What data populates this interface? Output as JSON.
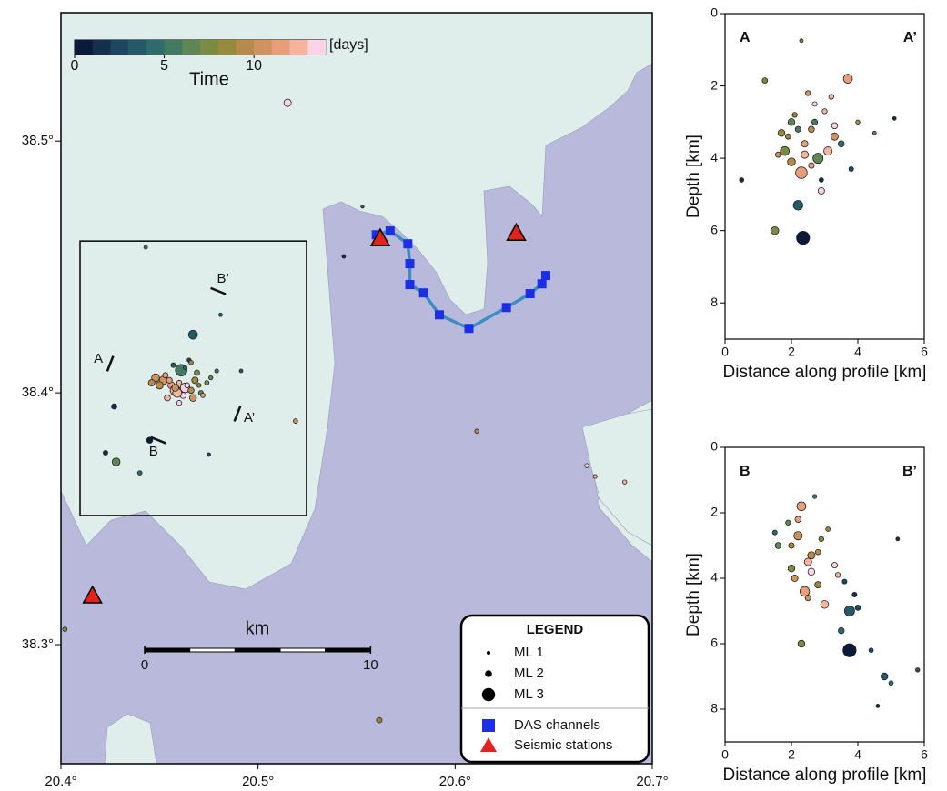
{
  "chart_data": [
    {
      "type": "map",
      "xlim": [
        20.4,
        20.7
      ],
      "ylim": [
        38.2527,
        38.551
      ],
      "xticks": [
        {
          "value": 20.4,
          "label": "20.4°"
        },
        {
          "value": 20.5,
          "label": "20.5°"
        },
        {
          "value": 20.6,
          "label": "20.6°"
        },
        {
          "value": 20.7,
          "label": "20.7°"
        }
      ],
      "yticks": [
        {
          "value": 38.3,
          "label": "38.3°"
        },
        {
          "value": 38.4,
          "label": "38.4°"
        },
        {
          "value": 38.5,
          "label": "38.5°"
        }
      ],
      "colorbar": {
        "label": "Time",
        "unit": "[days]",
        "lim": [
          0,
          14
        ],
        "ticks": [
          0,
          5,
          10
        ],
        "colors": [
          "#0b1a3b",
          "#15304f",
          "#1d4760",
          "#245a68",
          "#2f6b6a",
          "#437a62",
          "#5f8654",
          "#7b8b44",
          "#98893e",
          "#b58a4c",
          "#cf9360",
          "#e89e78",
          "#f4b49d",
          "#fbd3e6"
        ]
      },
      "events": {
        "x": [
          20.515,
          20.443,
          20.481,
          20.5435,
          20.553,
          20.519,
          20.611,
          20.402,
          20.5615,
          20.6668,
          20.671,
          20.686,
          20.427,
          20.445,
          20.428,
          20.4226,
          20.44,
          20.475,
          20.467,
          20.479,
          20.4914,
          20.452,
          20.456,
          20.46,
          20.463,
          20.466,
          20.47,
          20.448,
          20.453,
          20.458,
          20.462,
          20.467,
          20.471,
          20.474,
          20.45,
          20.455,
          20.459,
          20.464,
          20.468,
          20.461,
          20.457,
          20.465,
          20.469,
          20.454,
          20.46,
          20.472,
          20.458,
          20.463,
          20.446,
          20.476,
          20.466
        ],
        "y": [
          38.5152,
          38.4578,
          38.431,
          38.4542,
          38.474,
          38.3888,
          38.3848,
          38.3061,
          38.27,
          38.3711,
          38.3668,
          38.3646,
          38.3946,
          38.3812,
          38.3726,
          38.3762,
          38.3682,
          38.3755,
          38.4231,
          38.4087,
          38.4087,
          38.405,
          38.403,
          38.404,
          38.402,
          38.401,
          38.403,
          38.406,
          38.407,
          38.401,
          38.399,
          38.398,
          38.4,
          38.404,
          38.403,
          38.405,
          38.4,
          38.403,
          38.405,
          38.409,
          38.411,
          38.413,
          38.408,
          38.398,
          38.396,
          38.399,
          38.402,
          38.41,
          38.404,
          38.406,
          38.412
        ],
        "magnitude": [
          2.1,
          1.0,
          1.0,
          1.0,
          0.8,
          1.3,
          1.2,
          1.3,
          1.6,
          1.2,
          1.1,
          1.2,
          1.6,
          1.8,
          2.2,
          1.4,
          1.3,
          1.0,
          2.4,
          1.1,
          1.0,
          2.3,
          2.0,
          1.5,
          2.5,
          1.8,
          1.2,
          2.2,
          1.6,
          2.6,
          1.8,
          2.0,
          1.4,
          1.3,
          2.1,
          1.7,
          2.4,
          1.5,
          1.9,
          2.8,
          1.4,
          1.2,
          1.6,
          1.8,
          1.5,
          1.3,
          2.0,
          1.1,
          1.9,
          1.2,
          1.3
        ],
        "time": [
          13,
          5,
          4,
          1,
          3,
          10,
          9,
          7,
          8,
          13,
          12,
          12,
          1,
          0,
          6,
          1,
          4,
          2,
          3,
          5,
          3,
          10,
          11,
          12,
          13,
          9,
          8,
          10,
          11,
          12,
          13,
          10,
          6,
          7,
          9,
          11,
          12,
          13,
          8,
          5,
          3,
          2,
          7,
          12,
          13,
          11,
          10,
          4,
          9,
          6,
          8
        ]
      },
      "stations": {
        "name": "Seismic stations",
        "color": "#e3231b",
        "x": [
          20.416,
          20.562,
          20.631
        ],
        "y": [
          38.3195,
          38.4614,
          38.4635
        ]
      },
      "das": {
        "name": "DAS channels",
        "color": "#1b2fe6",
        "cable_color": "#3b8dc4",
        "x": [
          20.56,
          20.567,
          20.576,
          20.577,
          20.577,
          20.584,
          20.592,
          20.607,
          20.626,
          20.638,
          20.644,
          20.646
        ],
        "y": [
          38.4628,
          38.4643,
          38.4592,
          38.4513,
          38.443,
          38.4397,
          38.431,
          38.4256,
          38.4339,
          38.4394,
          38.4433,
          38.4466
        ]
      },
      "inset": {
        "xlim": [
          20.4097,
          20.5246
        ],
        "ylim": [
          38.3513,
          38.4603
        ]
      },
      "profiles": [
        {
          "labels": [
            "A",
            "A’"
          ],
          "x": [
            20.425,
            20.4895
          ],
          "y": [
            38.4116,
            38.3917
          ]
        },
        {
          "labels": [
            "B",
            "B’"
          ],
          "x": [
            20.4494,
            20.4798
          ],
          "y": [
            38.3812,
            38.4404
          ]
        }
      ],
      "scalebar": {
        "label": "km",
        "ticks": [
          0,
          10
        ]
      },
      "legend": {
        "title": "LEGEND",
        "magnitudes": [
          {
            "value": 1,
            "label": "ML 1"
          },
          {
            "value": 2,
            "label": "ML 2"
          },
          {
            "value": 3,
            "label": "ML 3"
          }
        ]
      }
    },
    {
      "type": "scatter",
      "labels": [
        "A",
        "A’"
      ],
      "xlabel": "Distance along profile [km]",
      "ylabel": "Depth [km]",
      "xlim": [
        0,
        6
      ],
      "ylim": [
        0,
        9
      ],
      "xticks": [
        0,
        2,
        4,
        6
      ],
      "yticks": [
        0,
        2,
        4,
        6,
        8
      ],
      "y_inverted": true,
      "x": [
        3.7,
        2.35,
        2.2,
        1.5,
        2.3,
        0.5,
        5.1,
        2.0,
        2.6,
        3.0,
        3.3,
        2.8,
        2.4,
        1.8,
        1.9,
        2.7,
        3.1,
        2.2,
        2.5,
        3.5,
        1.2,
        4.0,
        2.9,
        2.1,
        2.6,
        3.8,
        1.6,
        2.3,
        3.2,
        2.0,
        2.7,
        1.7,
        2.9,
        3.3,
        4.5,
        2.4
      ],
      "y": [
        1.8,
        6.2,
        5.3,
        6.0,
        4.4,
        4.6,
        2.9,
        3.0,
        3.2,
        2.7,
        3.4,
        4.0,
        3.6,
        3.8,
        3.4,
        2.5,
        3.8,
        3.2,
        2.2,
        3.6,
        1.85,
        3.0,
        4.9,
        2.8,
        4.2,
        4.3,
        3.9,
        0.75,
        2.3,
        4.1,
        3.0,
        3.3,
        4.6,
        3.1,
        3.3,
        3.9
      ],
      "magnitude": [
        2.4,
        3.0,
        2.5,
        2.2,
        2.8,
        1.3,
        1.0,
        2.0,
        1.8,
        1.5,
        2.1,
        2.6,
        1.9,
        2.4,
        1.6,
        1.4,
        2.3,
        1.7,
        1.5,
        1.8,
        1.6,
        1.2,
        1.9,
        1.5,
        1.7,
        1.4,
        1.6,
        1.0,
        1.5,
        2.2,
        1.7,
        2.0,
        1.3,
        1.8,
        1.0,
        2.1
      ],
      "time": [
        11,
        0,
        3,
        7,
        11,
        1,
        1,
        6,
        9,
        12,
        10,
        6,
        11,
        7,
        8,
        13,
        12,
        5,
        10,
        4,
        7,
        9,
        13,
        8,
        11,
        2,
        10,
        7,
        12,
        9,
        5,
        8,
        1,
        13,
        6,
        12
      ]
    },
    {
      "type": "scatter",
      "labels": [
        "B",
        "B’"
      ],
      "xlabel": "Distance along profile [km]",
      "ylabel": "Depth [km]",
      "xlim": [
        0,
        6
      ],
      "ylim": [
        0,
        9
      ],
      "xticks": [
        0,
        2,
        4,
        6
      ],
      "yticks": [
        0,
        2,
        4,
        6,
        8
      ],
      "y_inverted": true,
      "x": [
        2.3,
        3.75,
        3.75,
        4.8,
        2.3,
        5.8,
        5.0,
        4.6,
        3.5,
        2.0,
        2.2,
        2.5,
        1.9,
        2.8,
        3.1,
        2.4,
        1.6,
        2.6,
        3.0,
        3.6,
        2.1,
        2.9,
        3.3,
        4.0,
        2.7,
        2.2,
        1.5,
        3.4,
        2.0,
        2.5,
        4.4,
        2.8,
        3.9,
        5.2,
        2.6
      ],
      "y": [
        1.8,
        6.2,
        5.0,
        7.0,
        6.0,
        6.8,
        7.2,
        7.9,
        5.6,
        3.0,
        2.7,
        3.5,
        2.3,
        3.2,
        2.5,
        4.4,
        3.0,
        3.8,
        4.8,
        4.1,
        4.0,
        2.8,
        3.6,
        4.9,
        1.5,
        2.2,
        2.6,
        3.9,
        3.7,
        4.6,
        6.2,
        4.2,
        4.5,
        2.8,
        3.3
      ],
      "magnitude": [
        2.4,
        3.0,
        2.6,
        2.0,
        2.0,
        1.2,
        1.3,
        1.0,
        1.8,
        1.7,
        2.3,
        2.1,
        1.5,
        1.6,
        1.3,
        2.5,
        1.8,
        2.0,
        2.2,
        1.4,
        1.9,
        1.5,
        1.7,
        1.6,
        1.2,
        1.8,
        1.4,
        1.5,
        2.0,
        1.7,
        1.3,
        1.9,
        1.4,
        1.0,
        2.1
      ],
      "time": [
        11,
        0,
        3,
        3,
        7,
        3,
        4,
        1,
        4,
        8,
        10,
        12,
        6,
        9,
        8,
        11,
        6,
        13,
        12,
        2,
        10,
        7,
        13,
        2,
        5,
        11,
        4,
        12,
        7,
        10,
        2,
        8,
        1,
        1,
        9
      ]
    }
  ]
}
